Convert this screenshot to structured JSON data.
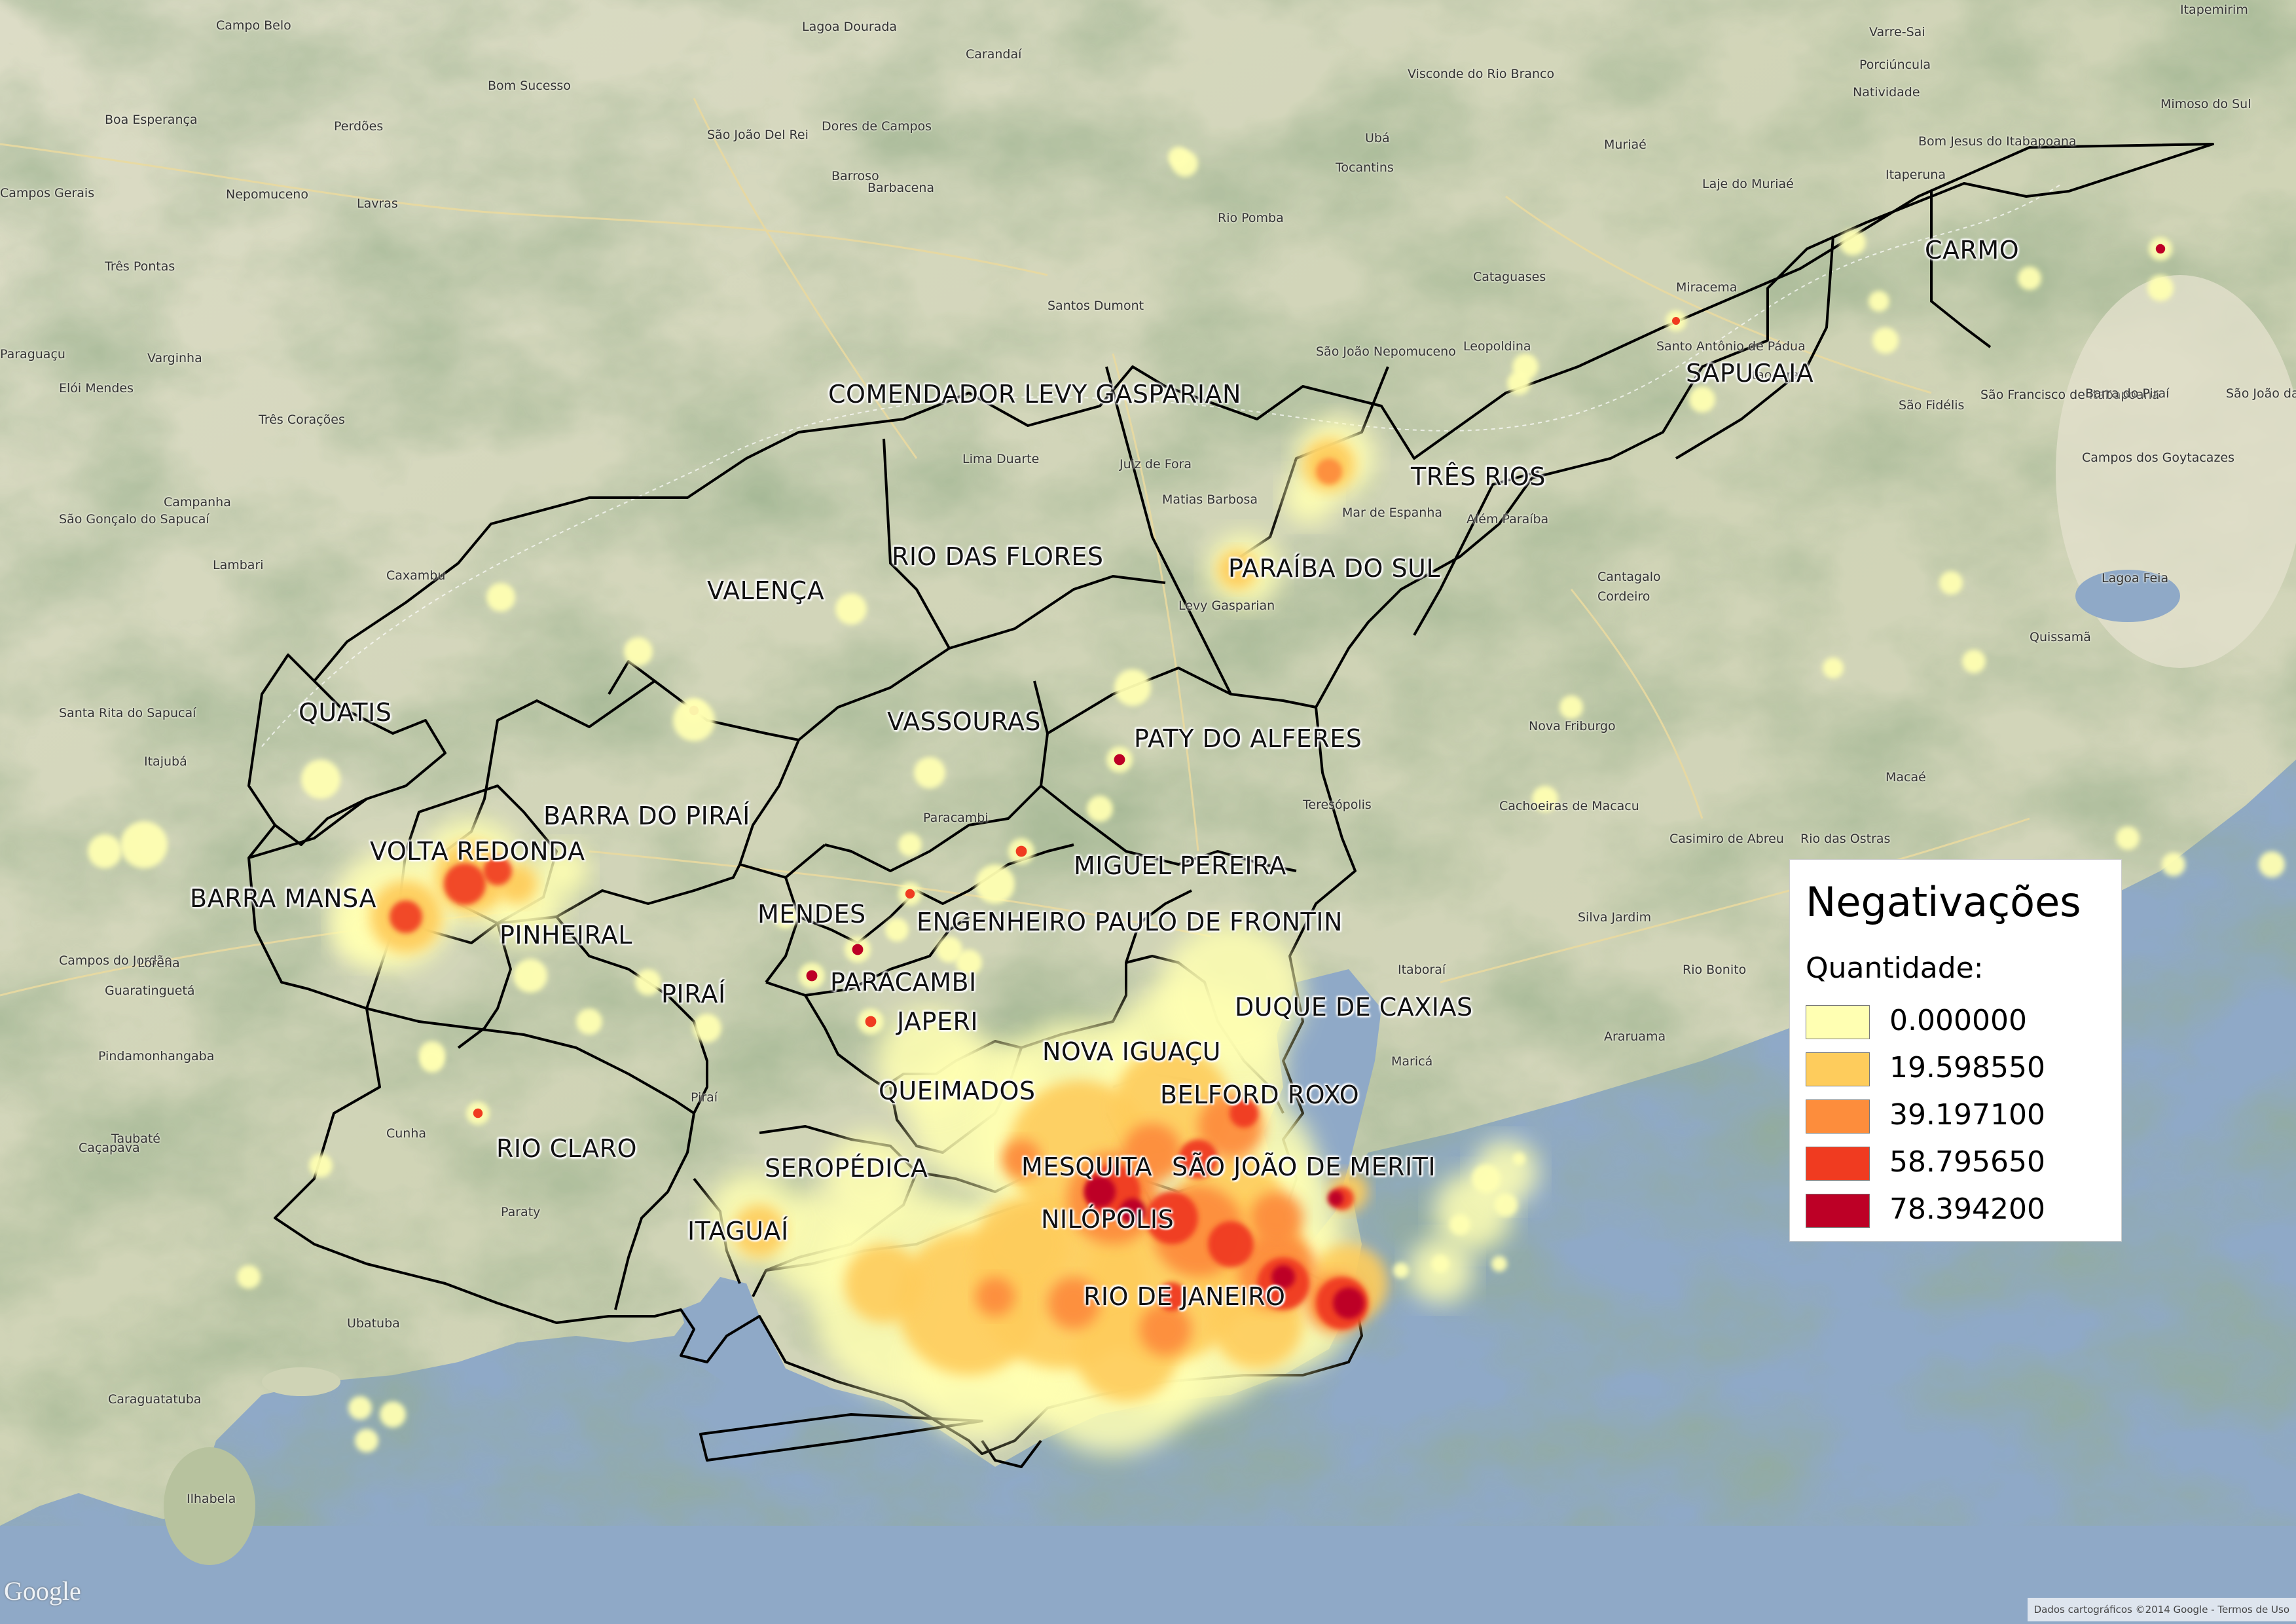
{
  "legend": {
    "title": "Negativações",
    "subtitle": "Quantidade:",
    "items": [
      {
        "label": "0.000000",
        "color": "#ffffb2"
      },
      {
        "label": "19.598550",
        "color": "#fecc5c"
      },
      {
        "label": "39.197100",
        "color": "#fd8d3c"
      },
      {
        "label": "58.795650",
        "color": "#f03b20"
      },
      {
        "label": "78.394200",
        "color": "#bd0026"
      }
    ]
  },
  "municipalities": [
    "CARMO",
    "SAPUCAIA",
    "COMENDADOR LEVY GASPARIAN",
    "TRÊS RIOS",
    "RIO DAS FLORES",
    "PARAÍBA DO SUL",
    "VALENÇA",
    "QUATIS",
    "VASSOURAS",
    "PATY DO ALFERES",
    "BARRA DO PIRAÍ",
    "VOLTA REDONDA",
    "BARRA MANSA",
    "MIGUEL PEREIRA",
    "PINHEIRAL",
    "MENDES",
    "ENGENHEIRO PAULO DE FRONTIN",
    "PARACAMBI",
    "PIRAÍ",
    "DUQUE DE CAXIAS",
    "JAPERI",
    "NOVA IGUAÇU",
    "QUEIMADOS",
    "BELFORD ROXO",
    "RIO CLARO",
    "SEROPÉDICA",
    "MESQUITA",
    "SÃO JOÃO DE MERITI",
    "NILÓPOLIS",
    "ITAGUAÍ",
    "RIO DE JANEIRO"
  ],
  "basemap_labels": [
    "Campo Belo",
    "Lagoa Dourada",
    "Carandaí",
    "Varre-Sai",
    "Itapemirim",
    "Porciúncula",
    "Natividade",
    "Mimoso do Sul",
    "Boa Esperança",
    "Perdões",
    "Bom Sucesso",
    "São João Del Rei",
    "Dores de Campos",
    "Visconde do Rio Branco",
    "Ubá",
    "Muriaé",
    "Bom Jesus do Itabapoana",
    "Nepomuceno",
    "Barroso",
    "Barbacena",
    "Tocantins",
    "Laje do Muriaé",
    "Itaperuna",
    "Campos Gerais",
    "Lavras",
    "Rio Pomba",
    "Três Pontas",
    "Cataguases",
    "Miracema",
    "Santos Dumont",
    "Santo Antônio de Pádua",
    "Paraguaçu",
    "Varginha",
    "São João Nepomuceno",
    "Leopoldina",
    "Elói Mendes",
    "São Fidélis",
    "São Francisco de Itabapoana",
    "Três Corações",
    "Itaocara",
    "Juiz de Fora",
    "Lima Duarte",
    "Campos dos Goytacazes",
    "Matias Barbosa",
    "Além Paraíba",
    "São Gonçalo do Sapucaí",
    "Campanha",
    "Mar de Espanha",
    "Cantagalo",
    "Cordeiro",
    "Lambari",
    "Levy Gasparian",
    "Caxambu",
    "Quissamã",
    "Nova Friburgo",
    "Santa Rita do Sapucaí",
    "Itajubá",
    "Macaé",
    "Teresópolis",
    "Cachoeiras de Macacu",
    "Casimiro de Abreu",
    "Rio das Ostras",
    "Silva Jardim",
    "Rio Bonito",
    "Campos do Jordão",
    "Guaratinguetá",
    "Lorena",
    "Itaboraí",
    "Maricá",
    "Araruama",
    "Pindamonhangaba",
    "Taubaté",
    "Caçapava",
    "Cunha",
    "Paraty",
    "Ubatuba",
    "Caraguatatuba",
    "Ilhabela",
    "Lagoa Feia",
    "São João da Barra",
    "Barra do Piraí",
    "Paracambi",
    "Piraí"
  ],
  "google_logo": "Google",
  "attribution": "Dados cartográficos ©2014 Google - Termos de Uso"
}
